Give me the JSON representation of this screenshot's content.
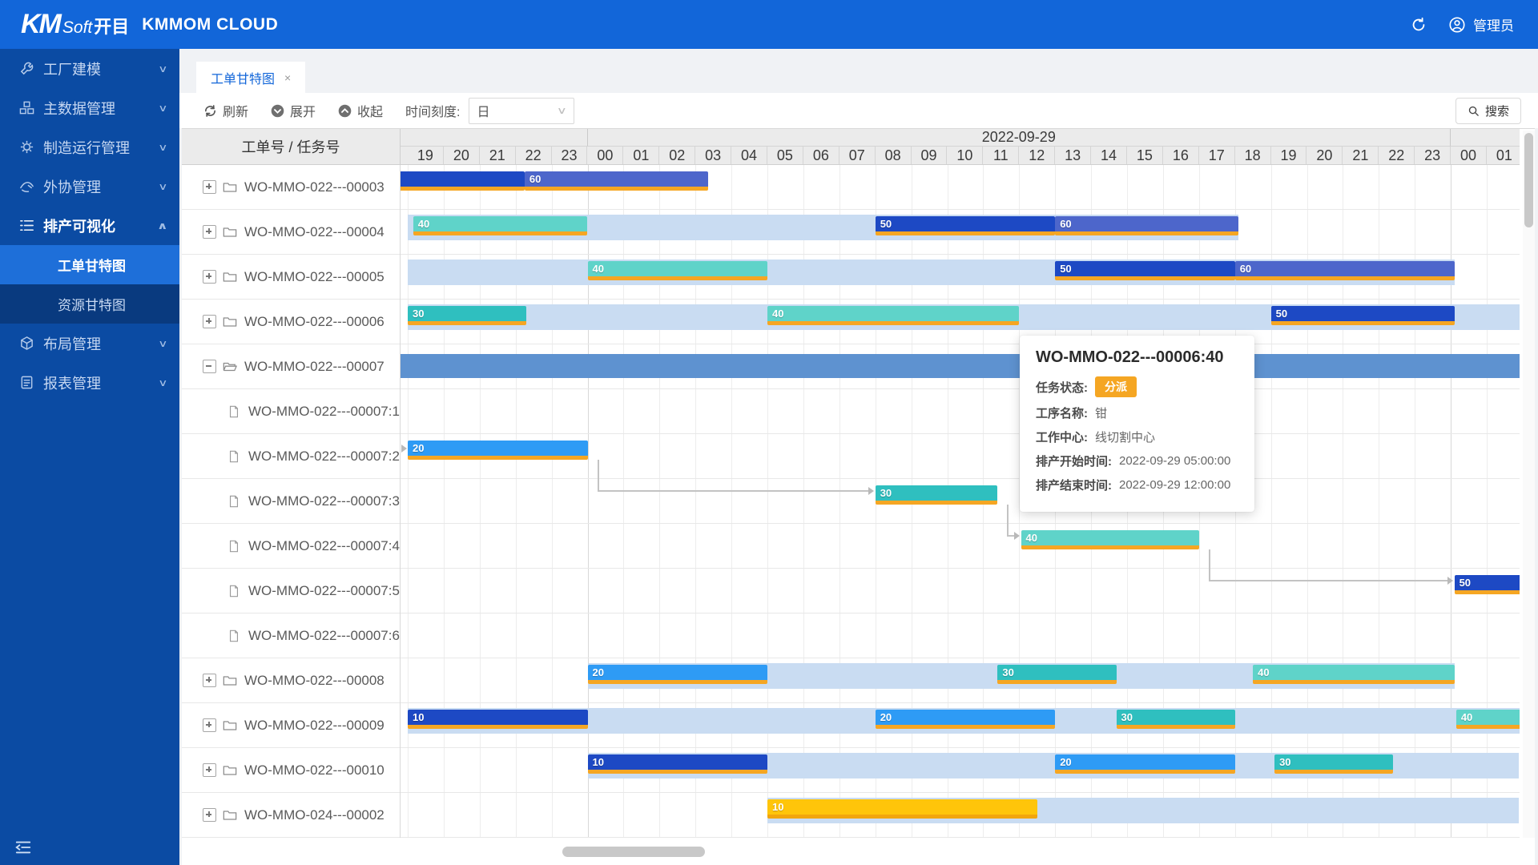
{
  "header": {
    "logo_main": "KM",
    "logo_sub": "Soft",
    "logo_cn": "开目",
    "brand": "KMMOM CLOUD",
    "user_label": "管理员"
  },
  "sidebar": {
    "items": [
      {
        "icon": "wrench-icon",
        "label": "工厂建模",
        "chevron": "down"
      },
      {
        "icon": "cubes-icon",
        "label": "主数据管理",
        "chevron": "down"
      },
      {
        "icon": "gear-icon",
        "label": "制造运行管理",
        "chevron": "down"
      },
      {
        "icon": "hand-icon",
        "label": "外协管理",
        "chevron": "down"
      },
      {
        "icon": "list-icon",
        "label": "排产可视化",
        "chevron": "up",
        "active": true,
        "children": [
          {
            "label": "工单甘特图",
            "selected": true
          },
          {
            "label": "资源甘特图",
            "selected": false
          }
        ]
      },
      {
        "icon": "box-icon",
        "label": "布局管理",
        "chevron": "down"
      },
      {
        "icon": "doc-icon",
        "label": "报表管理",
        "chevron": "down"
      }
    ]
  },
  "tab": {
    "label": "工单甘特图",
    "close": "×"
  },
  "toolbar": {
    "refresh": "刷新",
    "expand": "展开",
    "collapse": "收起",
    "scale_label": "时间刻度:",
    "scale_value": "日",
    "search": "搜索"
  },
  "gantt": {
    "corner": "工单号 / 任务号",
    "days": [
      {
        "label": "",
        "span": 5
      },
      {
        "label": "2022-09-29",
        "span": 24
      },
      {
        "label": "",
        "span": 2
      }
    ],
    "hours": [
      "19",
      "20",
      "21",
      "22",
      "23",
      "00",
      "01",
      "02",
      "03",
      "04",
      "05",
      "06",
      "07",
      "08",
      "09",
      "10",
      "11",
      "12",
      "13",
      "14",
      "15",
      "16",
      "17",
      "18",
      "19",
      "20",
      "21",
      "22",
      "23",
      "00",
      "01"
    ],
    "rows": [
      {
        "id": "WO-MMO-022---00003",
        "kind": "parent",
        "bars": [
          {
            "s": -0.25,
            "e": 3.25,
            "c": "navy",
            "label": ""
          },
          {
            "s": 3.25,
            "e": 8.35,
            "c": "slate",
            "label": "60"
          }
        ]
      },
      {
        "id": "WO-MMO-022---00004",
        "kind": "parent",
        "band": {
          "s": 0,
          "e": 23.1
        },
        "bars": [
          {
            "s": 0.15,
            "e": 5,
            "c": "tealLight",
            "label": "40"
          },
          {
            "s": 13,
            "e": 18,
            "c": "navy",
            "label": "50"
          },
          {
            "s": 18,
            "e": 23.1,
            "c": "slate",
            "label": "60"
          }
        ]
      },
      {
        "id": "WO-MMO-022---00005",
        "kind": "parent",
        "band": {
          "s": 0,
          "e": 29.1
        },
        "bars": [
          {
            "s": 5,
            "e": 10,
            "c": "tealLight",
            "label": "40"
          },
          {
            "s": 18,
            "e": 23,
            "c": "navy",
            "label": "50"
          },
          {
            "s": 23,
            "e": 29.1,
            "c": "slate",
            "label": "60"
          }
        ]
      },
      {
        "id": "WO-MMO-022---00006",
        "kind": "parent",
        "band": {
          "s": 0,
          "e": 30.95
        },
        "bars": [
          {
            "s": 0,
            "e": 3.3,
            "c": "tealDark",
            "label": "30"
          },
          {
            "s": 10,
            "e": 17,
            "c": "tealLight",
            "label": "40"
          },
          {
            "s": 24,
            "e": 29.1,
            "c": "navy",
            "label": "50"
          }
        ]
      },
      {
        "id": "WO-MMO-022---00007",
        "kind": "parentOpen",
        "bars": [
          {
            "s": -0.25,
            "e": 30.95,
            "c": "steel",
            "label": "",
            "solid": true
          }
        ]
      },
      {
        "id": "WO-MMO-022---00007:1",
        "kind": "child",
        "bars": []
      },
      {
        "id": "WO-MMO-022---00007:2",
        "kind": "child",
        "leftArrow": true,
        "bars": [
          {
            "s": 0,
            "e": 5,
            "c": "blue",
            "label": "20"
          }
        ]
      },
      {
        "id": "WO-MMO-022---00007:3",
        "kind": "child",
        "bars": [
          {
            "s": 13,
            "e": 16.4,
            "c": "tealDark",
            "label": "30"
          }
        ]
      },
      {
        "id": "WO-MMO-022---00007:4",
        "kind": "child",
        "bars": [
          {
            "s": 17.05,
            "e": 22,
            "c": "tealLight",
            "label": "40"
          }
        ]
      },
      {
        "id": "WO-MMO-022---00007:5",
        "kind": "child",
        "bars": [
          {
            "s": 29.1,
            "e": 31.6,
            "c": "navy",
            "label": "50"
          }
        ]
      },
      {
        "id": "WO-MMO-022---00007:6",
        "kind": "child",
        "bars": []
      },
      {
        "id": "WO-MMO-022---00008",
        "kind": "parent",
        "band": {
          "s": 5,
          "e": 29.1
        },
        "bars": [
          {
            "s": 5,
            "e": 10,
            "c": "blue",
            "label": "20"
          },
          {
            "s": 16.4,
            "e": 19.7,
            "c": "tealDark",
            "label": "30"
          },
          {
            "s": 23.5,
            "e": 29.1,
            "c": "tealLight",
            "label": "40"
          }
        ]
      },
      {
        "id": "WO-MMO-022---00009",
        "kind": "parent",
        "band": {
          "s": 0,
          "e": 30.95
        },
        "bars": [
          {
            "s": 0,
            "e": 5,
            "c": "navy",
            "label": "10"
          },
          {
            "s": 13,
            "e": 18,
            "c": "blue",
            "label": "20"
          },
          {
            "s": 19.7,
            "e": 23,
            "c": "tealDark",
            "label": "30"
          },
          {
            "s": 29.15,
            "e": 31,
            "c": "tealLight",
            "label": "40"
          }
        ]
      },
      {
        "id": "WO-MMO-022---00010",
        "kind": "parent",
        "band": {
          "s": 5,
          "e": 30.9
        },
        "bars": [
          {
            "s": 5,
            "e": 10,
            "c": "navy",
            "label": "10"
          },
          {
            "s": 18,
            "e": 23,
            "c": "blue",
            "label": "20"
          },
          {
            "s": 24.1,
            "e": 27.4,
            "c": "tealDark",
            "label": "30"
          }
        ]
      },
      {
        "id": "WO-MMO-024---00002",
        "kind": "parent",
        "band": {
          "s": 10,
          "e": 30.9
        },
        "bars": [
          {
            "s": 10,
            "e": 17.5,
            "c": "gold",
            "label": "10"
          }
        ]
      }
    ],
    "links": [
      {
        "from": 6,
        "to": 7
      },
      {
        "from": 7,
        "to": 8
      },
      {
        "from": 8,
        "to": 9
      }
    ]
  },
  "tooltip": {
    "title": "WO-MMO-022---00006:40",
    "fields": [
      {
        "label": "任务状态:",
        "badge": "分派"
      },
      {
        "label": "工序名称:",
        "value": "钳"
      },
      {
        "label": "工作中心:",
        "value": "线切割中心"
      },
      {
        "label": "排产开始时间:",
        "value": "2022-09-29 05:00:00"
      },
      {
        "label": "排产结束时间:",
        "value": "2022-09-29 12:00:00"
      }
    ]
  },
  "colors": {
    "navy": "#1d49c4",
    "slate": "#4d66cb",
    "blue": "#2e9bf5",
    "tealDark": "#2fbfbf",
    "tealLight": "#5fd3c9",
    "gold": "#ffc50a",
    "steel": "#5e92d0",
    "band": "#c9dcf2",
    "underline": "#f5a623",
    "goldUnderline": "#f2a60d",
    "accent": "#1266d9",
    "badge": "#f5a623"
  }
}
